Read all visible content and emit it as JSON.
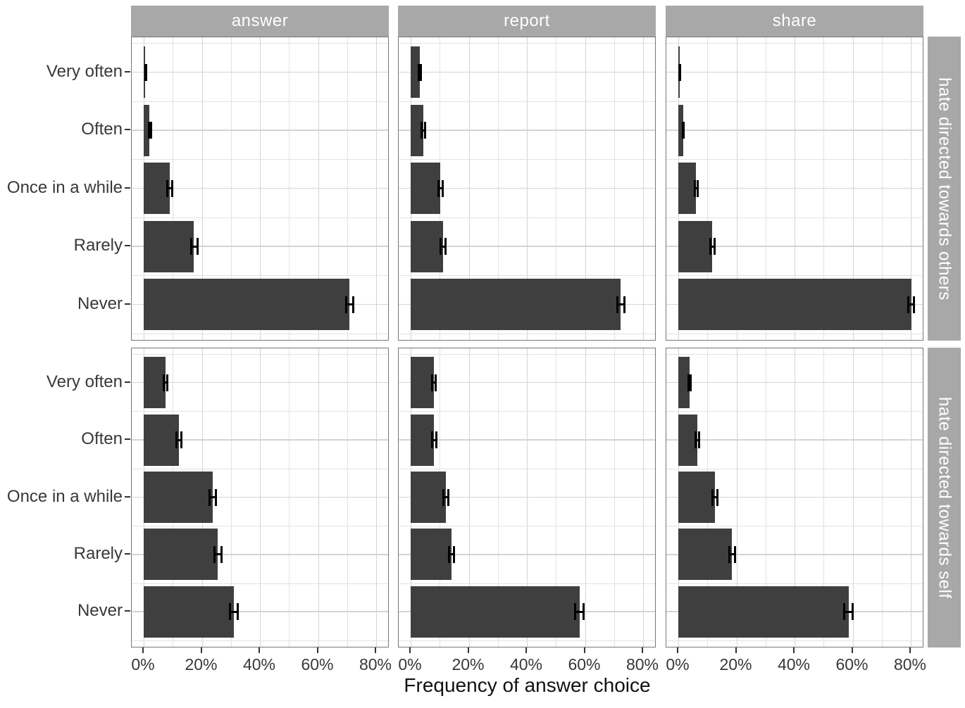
{
  "figure": {
    "x_axis_title": "Frequency of answer choice",
    "colors": {
      "bar_fill": "#3f3f3f",
      "error_bar": "#000000",
      "strip_fill": "#a8a8a8",
      "strip_text": "#ffffff",
      "panel_border": "#777777",
      "grid_major": "#d4d4d4",
      "grid_minor": "#e2e2e2",
      "axis_text": "#383838",
      "background": "#ffffff"
    }
  },
  "chart_data": {
    "type": "bar",
    "orientation": "horizontal",
    "title": "",
    "xlabel": "Frequency of answer choice",
    "ylabel": "",
    "x_unit": "%",
    "x_ticks": [
      0,
      20,
      40,
      60,
      80
    ],
    "x_tick_labels": [
      "0%",
      "20%",
      "40%",
      "60%",
      "80%"
    ],
    "xlim": [
      0,
      84.7
    ],
    "grid": "on",
    "categories_top_to_bottom": [
      "Very often",
      "Often",
      "Once in a while",
      "Rarely",
      "Never"
    ],
    "col_facets": [
      "answer",
      "report",
      "share"
    ],
    "row_facets": [
      "hate directed towards others",
      "hate directed towards self"
    ],
    "error_bars": "95% CI",
    "panels": [
      {
        "row": "hate directed towards others",
        "col": "answer",
        "values": [
          0.6,
          2.0,
          8.9,
          17.3,
          70.8
        ],
        "ci_low": [
          0.2,
          1.4,
          7.8,
          16.0,
          69.3
        ],
        "ci_high": [
          1.3,
          3.0,
          10.1,
          18.8,
          72.4
        ]
      },
      {
        "row": "hate directed towards others",
        "col": "report",
        "values": [
          3.1,
          4.3,
          10.2,
          11.1,
          72.3
        ],
        "ci_low": [
          2.4,
          3.5,
          9.1,
          9.9,
          70.7
        ],
        "ci_high": [
          4.0,
          5.3,
          11.4,
          12.3,
          73.9
        ]
      },
      {
        "row": "hate directed towards others",
        "col": "share",
        "values": [
          0.4,
          1.6,
          6.1,
          11.7,
          80.2
        ],
        "ci_low": [
          0.1,
          1.1,
          5.3,
          10.7,
          78.8
        ],
        "ci_high": [
          1.0,
          2.3,
          7.0,
          12.9,
          81.5
        ]
      },
      {
        "row": "hate directed towards self",
        "col": "answer",
        "values": [
          7.5,
          12.1,
          23.7,
          25.5,
          31.0
        ],
        "ci_low": [
          6.6,
          11.0,
          22.2,
          23.9,
          29.4
        ],
        "ci_high": [
          8.6,
          13.4,
          25.3,
          27.1,
          32.7
        ]
      },
      {
        "row": "hate directed towards self",
        "col": "report",
        "values": [
          7.9,
          8.0,
          12.1,
          14.0,
          58.1
        ],
        "ci_low": [
          7.0,
          7.1,
          11.0,
          12.8,
          56.3
        ],
        "ci_high": [
          9.0,
          9.1,
          13.4,
          15.3,
          59.9
        ]
      },
      {
        "row": "hate directed towards self",
        "col": "share",
        "values": [
          3.8,
          6.5,
          12.6,
          18.5,
          58.6
        ],
        "ci_low": [
          3.1,
          5.6,
          11.4,
          17.1,
          56.8
        ],
        "ci_high": [
          4.7,
          7.5,
          13.9,
          20.0,
          60.4
        ]
      }
    ]
  }
}
